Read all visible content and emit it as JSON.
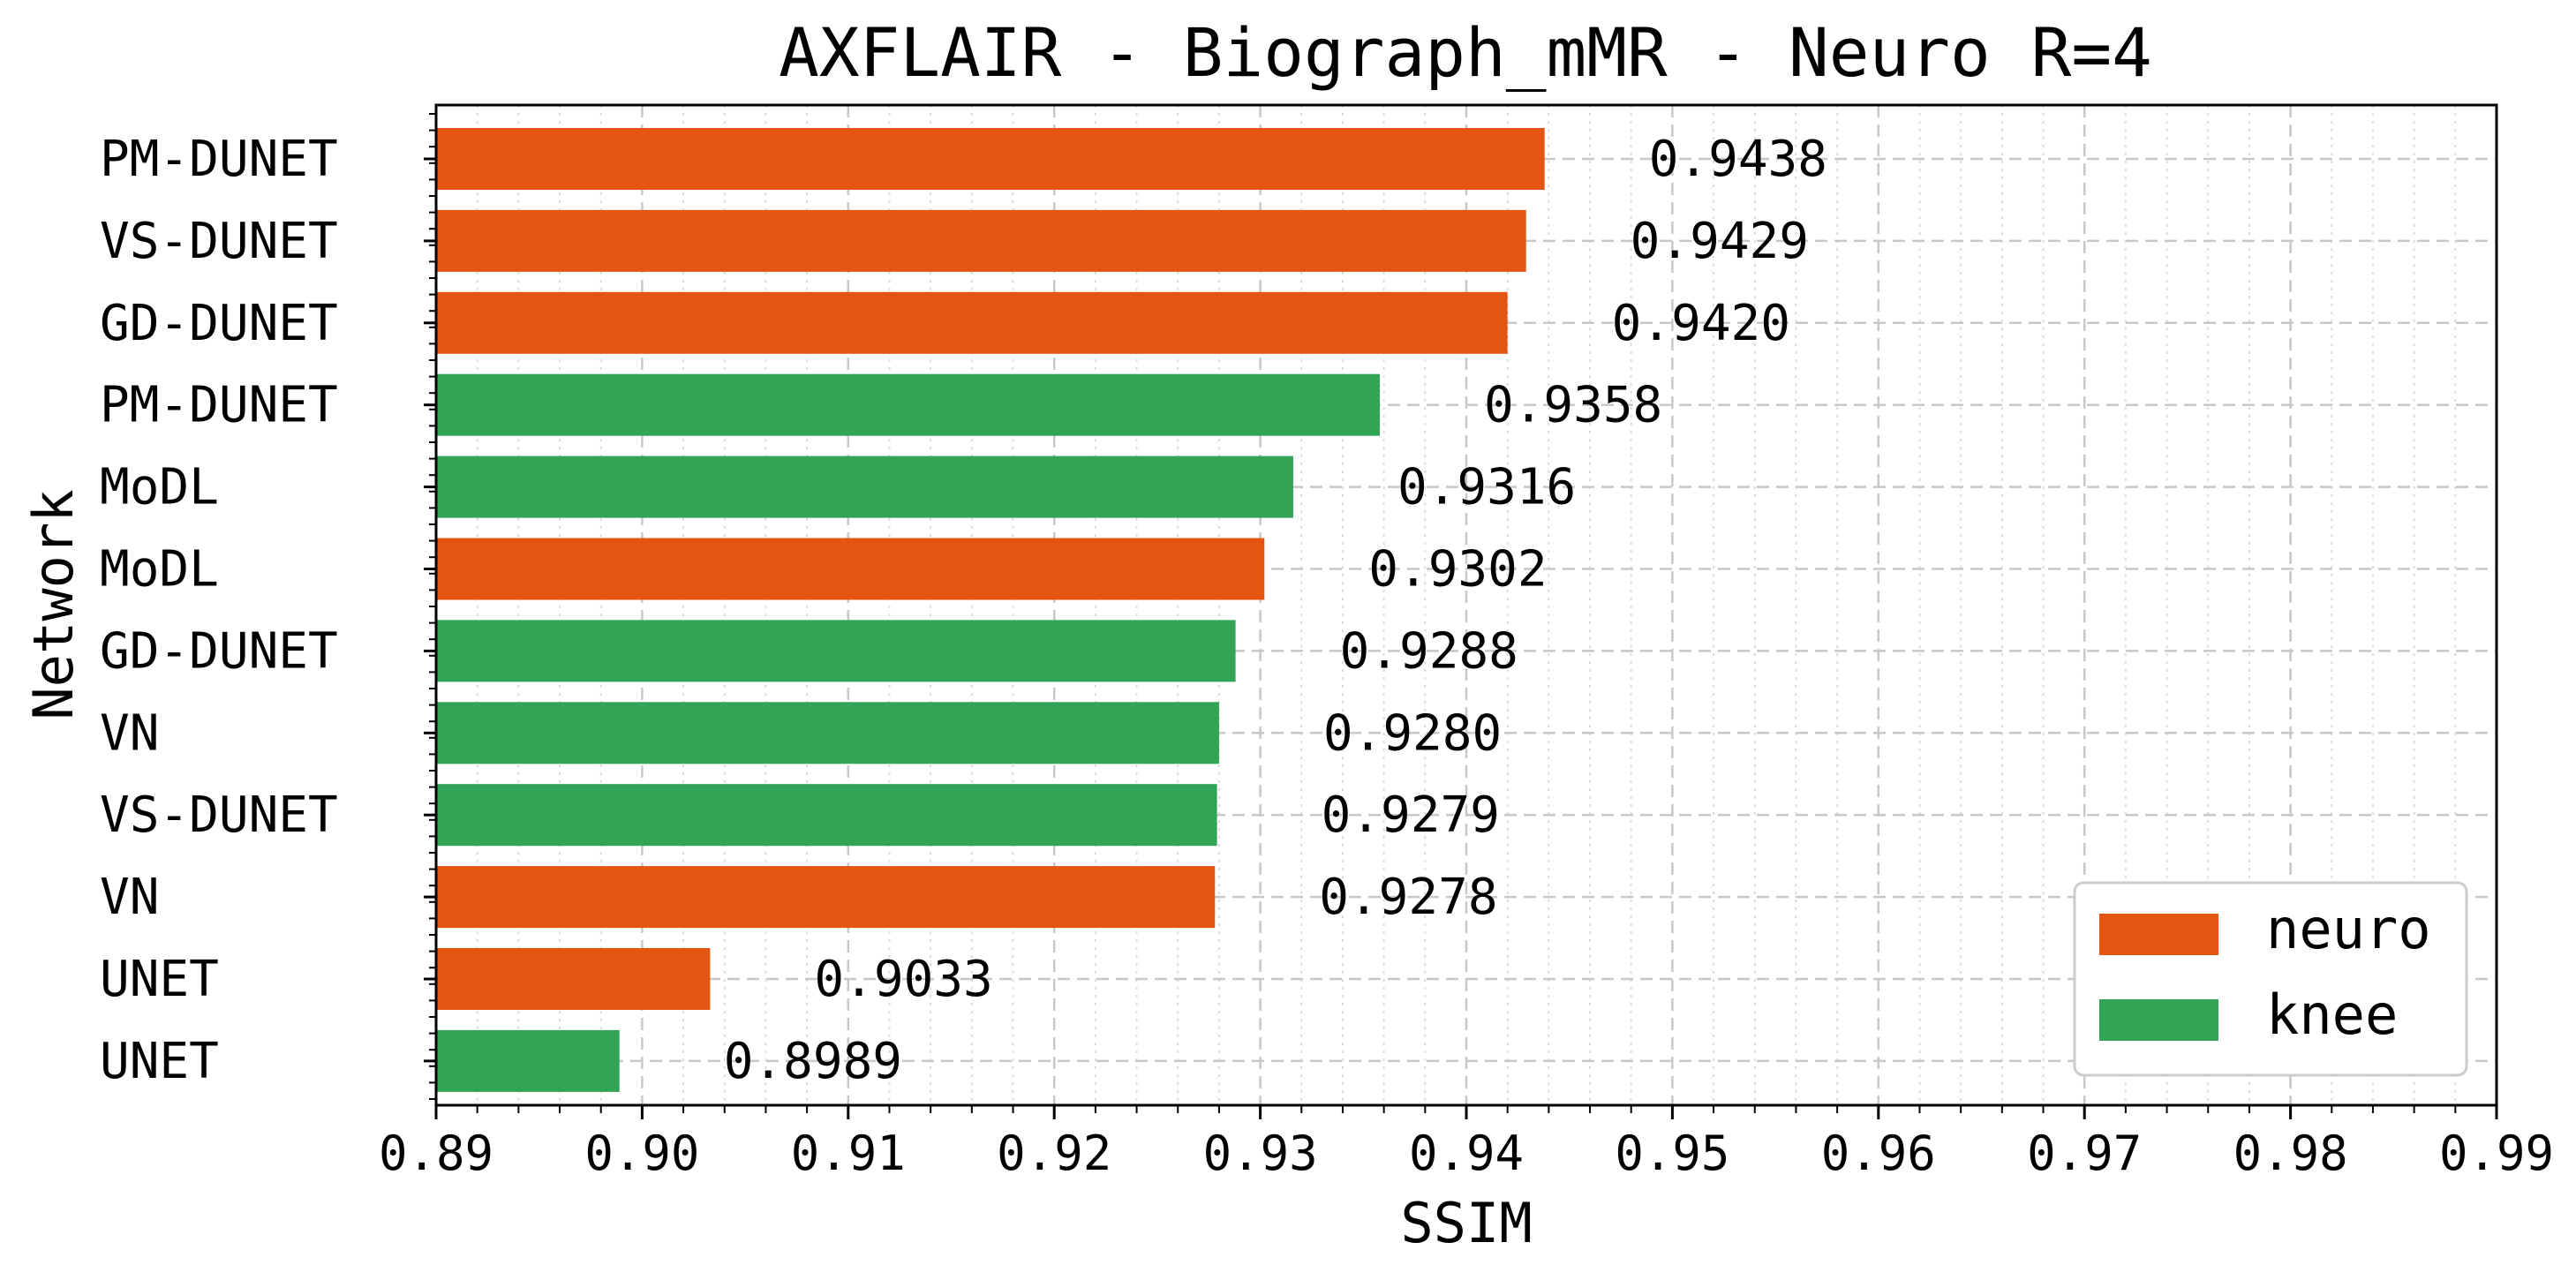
{
  "chart_data": {
    "type": "bar",
    "orientation": "horizontal",
    "title": "AXFLAIR - Biograph_mMR - Neuro R=4",
    "xlabel": "SSIM",
    "ylabel": "Network",
    "xlim": [
      0.89,
      0.99
    ],
    "xticks": [
      "0.89",
      "0.90",
      "0.91",
      "0.92",
      "0.93",
      "0.94",
      "0.95",
      "0.96",
      "0.97",
      "0.98",
      "0.99"
    ],
    "grid": true,
    "legend_position": "bottom-right",
    "colors": {
      "neuro": "#E45511",
      "knee": "#32A456"
    },
    "legend": [
      {
        "label": "neuro",
        "color": "#E45511"
      },
      {
        "label": "knee",
        "color": "#32A456"
      }
    ],
    "bars": [
      {
        "network": "PM-DUNET",
        "series": "neuro",
        "value": 0.9438,
        "label": "0.9438"
      },
      {
        "network": "VS-DUNET",
        "series": "neuro",
        "value": 0.9429,
        "label": "0.9429"
      },
      {
        "network": "GD-DUNET",
        "series": "neuro",
        "value": 0.942,
        "label": "0.9420"
      },
      {
        "network": "PM-DUNET",
        "series": "knee",
        "value": 0.9358,
        "label": "0.9358"
      },
      {
        "network": "MoDL",
        "series": "knee",
        "value": 0.9316,
        "label": "0.9316"
      },
      {
        "network": "MoDL",
        "series": "neuro",
        "value": 0.9302,
        "label": "0.9302"
      },
      {
        "network": "GD-DUNET",
        "series": "knee",
        "value": 0.9288,
        "label": "0.9288"
      },
      {
        "network": "VN",
        "series": "knee",
        "value": 0.928,
        "label": "0.9280"
      },
      {
        "network": "VS-DUNET",
        "series": "knee",
        "value": 0.9279,
        "label": "0.9279"
      },
      {
        "network": "VN",
        "series": "neuro",
        "value": 0.9278,
        "label": "0.9278"
      },
      {
        "network": "UNET",
        "series": "neuro",
        "value": 0.9033,
        "label": "0.9033"
      },
      {
        "network": "UNET",
        "series": "knee",
        "value": 0.8989,
        "label": "0.8989"
      }
    ]
  }
}
